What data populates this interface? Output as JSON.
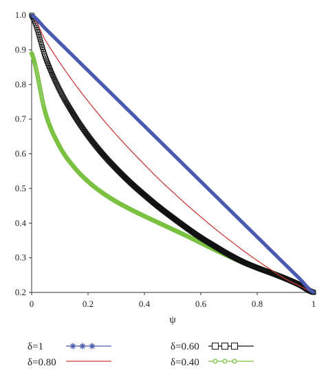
{
  "chart_data": {
    "type": "line",
    "title": "",
    "xlabel": "ψ",
    "ylabel": "",
    "xlim": [
      0,
      1
    ],
    "ylim": [
      0.2,
      1.0
    ],
    "x_ticks": [
      "0",
      "0.2",
      "0.4",
      "0.6",
      "0.8",
      "1"
    ],
    "y_ticks": [
      "1.0",
      "0.9",
      "0.8",
      "0.7",
      "0.6",
      "0.5",
      "0.4",
      "0.3",
      "0.2"
    ],
    "grid": false,
    "legend_position": "bottom",
    "x": [
      0,
      0.05,
      0.1,
      0.15,
      0.2,
      0.25,
      0.3,
      0.35,
      0.4,
      0.45,
      0.5,
      0.55,
      0.6,
      0.65,
      0.7,
      0.75,
      0.8,
      0.85,
      0.9,
      0.95,
      1.0
    ],
    "series": [
      {
        "name": "δ=1",
        "color": "#4a5bb0",
        "marker": "asterisk",
        "legend_glyph": "∗∗∗",
        "values": [
          1.0,
          0.96,
          0.92,
          0.88,
          0.84,
          0.8,
          0.76,
          0.72,
          0.68,
          0.64,
          0.6,
          0.56,
          0.52,
          0.48,
          0.44,
          0.4,
          0.36,
          0.32,
          0.28,
          0.24,
          0.2
        ]
      },
      {
        "name": "δ=0.80",
        "color": "#cc3a3a",
        "marker": "none",
        "legend_glyph": "",
        "values": [
          1.0,
          0.926,
          0.863,
          0.805,
          0.752,
          0.702,
          0.655,
          0.611,
          0.569,
          0.528,
          0.49,
          0.453,
          0.418,
          0.384,
          0.352,
          0.321,
          0.292,
          0.265,
          0.239,
          0.219,
          0.2
        ]
      },
      {
        "name": "δ=0.60",
        "color": "#111111",
        "marker": "square",
        "legend_glyph": "□□□",
        "values": [
          1.0,
          0.876,
          0.783,
          0.712,
          0.652,
          0.601,
          0.557,
          0.517,
          0.481,
          0.447,
          0.416,
          0.386,
          0.358,
          0.333,
          0.309,
          0.288,
          0.271,
          0.256,
          0.24,
          0.222,
          0.2
        ]
      },
      {
        "name": "δ=0.40",
        "color": "#7bc142",
        "marker": "circle",
        "legend_glyph": "○○○",
        "values": [
          0.89,
          0.715,
          0.62,
          0.562,
          0.52,
          0.488,
          0.462,
          0.44,
          0.42,
          0.401,
          0.382,
          0.363,
          0.343,
          0.323,
          0.304,
          0.286,
          0.271,
          0.258,
          0.242,
          0.223,
          0.2
        ]
      }
    ]
  }
}
